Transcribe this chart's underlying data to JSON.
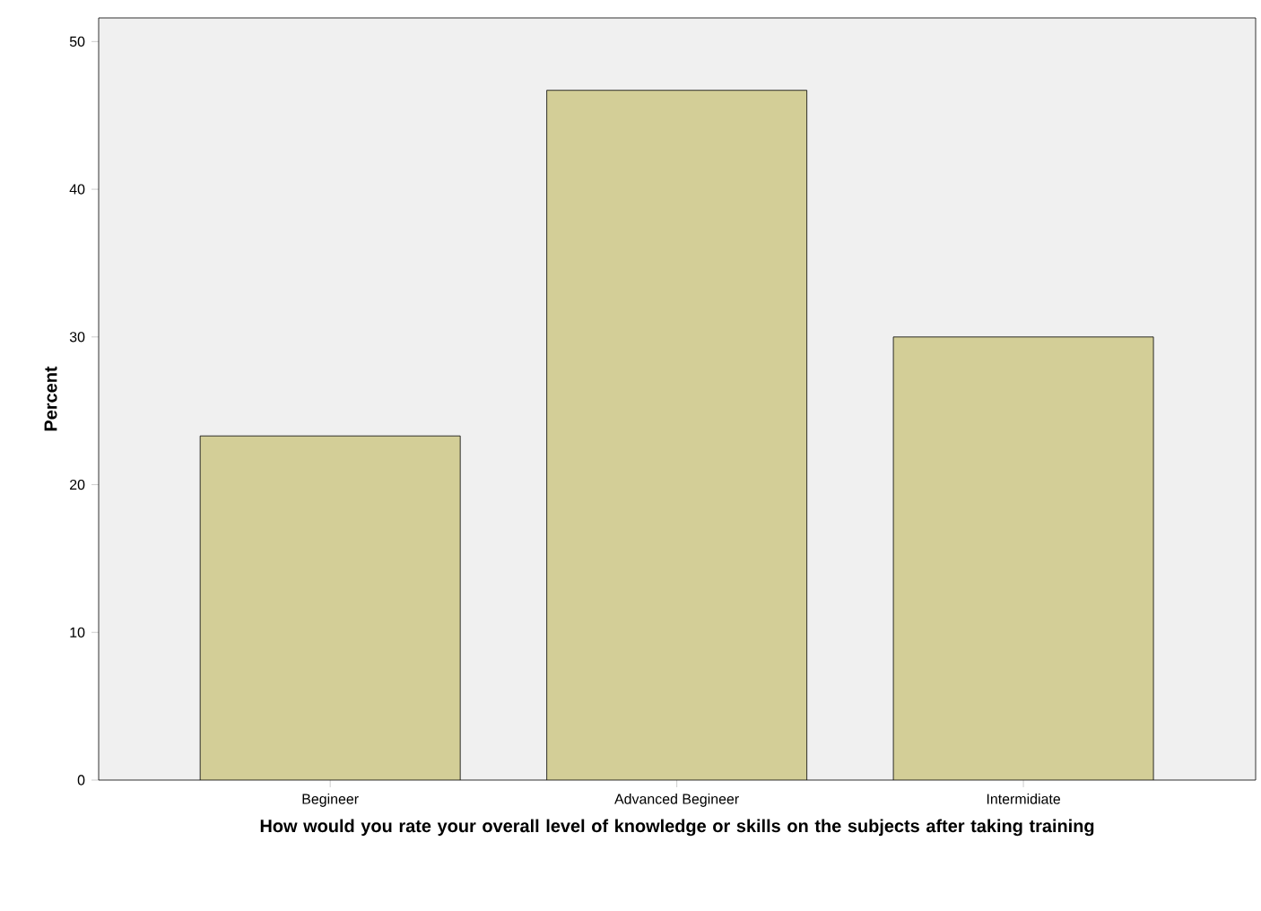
{
  "chart_data": {
    "type": "bar",
    "xlabel": "How would you rate your overall level of knowledge or skills on the subjects after taking training",
    "ylabel": "Percent",
    "categories": [
      "Begineer",
      "Advanced Begineer",
      "Intermidiate"
    ],
    "values": [
      23.3,
      46.7,
      30.0
    ],
    "color": "#d3ce97",
    "ylim": [
      0,
      51.6
    ],
    "yticks": [
      0,
      10,
      20,
      30,
      40,
      50
    ]
  }
}
